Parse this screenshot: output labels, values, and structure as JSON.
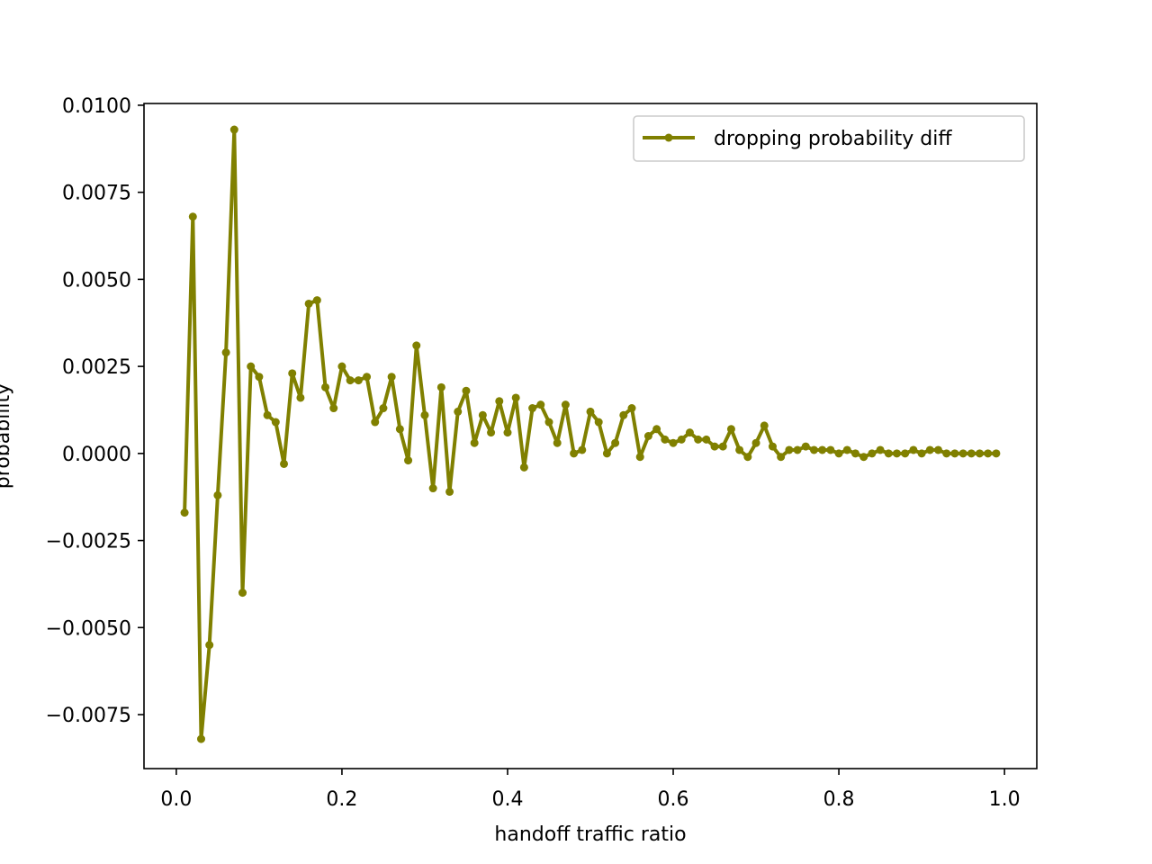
{
  "chart_data": {
    "type": "line",
    "title": "",
    "xlabel": "handoff traffic ratio",
    "ylabel": "probability",
    "xlim": [
      -0.039,
      1.039
    ],
    "ylim": [
      -0.00905,
      0.01005
    ],
    "xticks": [
      0.0,
      0.2,
      0.4,
      0.6,
      0.8,
      1.0
    ],
    "xtick_labels": [
      "0.0",
      "0.2",
      "0.4",
      "0.6",
      "0.8",
      "1.0"
    ],
    "yticks": [
      -0.0075,
      -0.005,
      -0.0025,
      0.0,
      0.0025,
      0.005,
      0.0075,
      0.01
    ],
    "ytick_labels": [
      "−0.0075",
      "−0.0050",
      "−0.0025",
      "0.0000",
      "0.0025",
      "0.0050",
      "0.0075",
      "0.0100"
    ],
    "grid": false,
    "legend_position": "top-right",
    "series": [
      {
        "name": "dropping probability diff",
        "color": "#808000",
        "marker": "circle",
        "x": [
          0.01,
          0.02,
          0.03,
          0.04,
          0.05,
          0.06,
          0.07,
          0.08,
          0.09,
          0.1,
          0.11,
          0.12,
          0.13,
          0.14,
          0.15,
          0.16,
          0.17,
          0.18,
          0.19,
          0.2,
          0.21,
          0.22,
          0.23,
          0.24,
          0.25,
          0.26,
          0.27,
          0.28,
          0.29,
          0.3,
          0.31,
          0.32,
          0.33,
          0.34,
          0.35,
          0.36,
          0.37,
          0.38,
          0.39,
          0.4,
          0.41,
          0.42,
          0.43,
          0.44,
          0.45,
          0.46,
          0.47,
          0.48,
          0.49,
          0.5,
          0.51,
          0.52,
          0.53,
          0.54,
          0.55,
          0.56,
          0.57,
          0.58,
          0.59,
          0.6,
          0.61,
          0.62,
          0.63,
          0.64,
          0.65,
          0.66,
          0.67,
          0.68,
          0.69,
          0.7,
          0.71,
          0.72,
          0.73,
          0.74,
          0.75,
          0.76,
          0.77,
          0.78,
          0.79,
          0.8,
          0.81,
          0.82,
          0.83,
          0.84,
          0.85,
          0.86,
          0.87,
          0.88,
          0.89,
          0.9,
          0.91,
          0.92,
          0.93,
          0.94,
          0.95,
          0.96,
          0.97,
          0.98,
          0.99
        ],
        "y": [
          -0.0017,
          0.0068,
          -0.0082,
          -0.0055,
          -0.0012,
          0.0029,
          0.0093,
          -0.004,
          0.0025,
          0.0022,
          0.0011,
          0.0009,
          -0.0003,
          0.0023,
          0.0016,
          0.0043,
          0.0044,
          0.0019,
          0.0013,
          0.0025,
          0.0021,
          0.0021,
          0.0022,
          0.0009,
          0.0013,
          0.0022,
          0.0007,
          -0.0002,
          0.0031,
          0.0011,
          -0.001,
          0.0019,
          -0.0011,
          0.0012,
          0.0018,
          0.0003,
          0.0011,
          0.0006,
          0.0015,
          0.0006,
          0.0016,
          -0.0004,
          0.0013,
          0.0014,
          0.0009,
          0.0003,
          0.0014,
          0.0,
          0.0001,
          0.0012,
          0.0009,
          0.0,
          0.0003,
          0.0011,
          0.0013,
          -0.0001,
          0.0005,
          0.0007,
          0.0004,
          0.0003,
          0.0004,
          0.0006,
          0.0004,
          0.0004,
          0.0002,
          0.0002,
          0.0007,
          0.0001,
          -0.0001,
          0.0003,
          0.0008,
          0.0002,
          -0.0001,
          0.0001,
          0.0001,
          0.0002,
          0.0001,
          0.0001,
          0.0001,
          0.0,
          0.0001,
          0.0,
          -0.0001,
          0.0,
          0.0001,
          0.0,
          0.0,
          0.0,
          0.0001,
          0.0,
          0.0001,
          0.0001,
          0.0,
          0.0,
          0.0,
          0.0,
          0.0,
          0.0,
          0.0
        ]
      }
    ]
  }
}
